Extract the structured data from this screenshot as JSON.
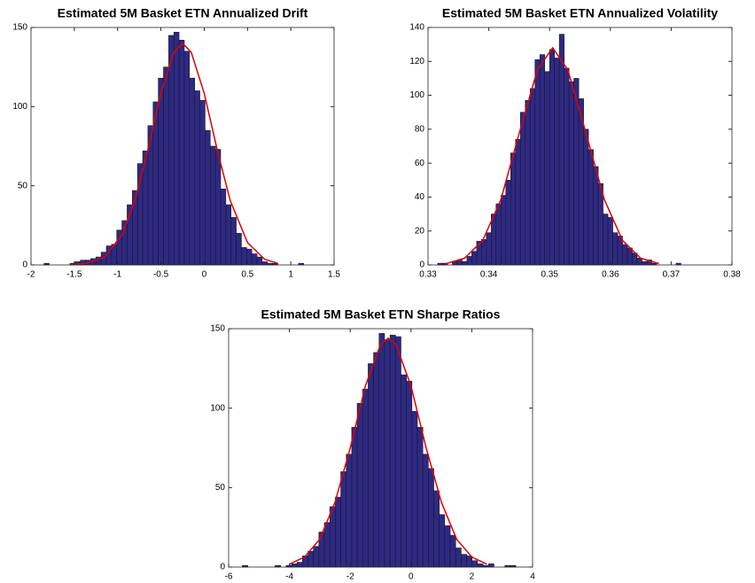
{
  "chart_data": [
    {
      "type": "histogram",
      "title": "Estimated 5M Basket ETN Annualized Drift",
      "color": "#2e2a80",
      "edgecolor": "#16143c",
      "bins": [
        -1.85,
        -1.79,
        -1.73,
        -1.67,
        -1.61,
        -1.55,
        -1.49,
        -1.43,
        -1.37,
        -1.31,
        -1.25,
        -1.19,
        -1.13,
        -1.07,
        -1.01,
        -0.95,
        -0.89,
        -0.83,
        -0.77,
        -0.71,
        -0.65,
        -0.59,
        -0.53,
        -0.47,
        -0.41,
        -0.35,
        -0.29,
        -0.23,
        -0.17,
        -0.11,
        -0.05,
        0.01,
        0.07,
        0.13,
        0.19,
        0.25,
        0.31,
        0.37,
        0.43,
        0.49,
        0.55,
        0.61,
        0.67,
        0.73,
        0.79,
        0.85,
        0.91,
        0.97,
        1.03,
        1.09,
        1.15
      ],
      "values": [
        1,
        0,
        0,
        0,
        0,
        1,
        2,
        3,
        3,
        4,
        5,
        8,
        12,
        13,
        22,
        28,
        38,
        47,
        64,
        72,
        88,
        103,
        118,
        125,
        145,
        147,
        142,
        135,
        118,
        110,
        104,
        85,
        75,
        73,
        48,
        38,
        30,
        20,
        11,
        10,
        7,
        5,
        2,
        1,
        1,
        0,
        0,
        0,
        0,
        1
      ],
      "curve": {
        "color": "#e00000",
        "x": [
          -1.55,
          -1.35,
          -1.15,
          -0.95,
          -0.8,
          -0.65,
          -0.5,
          -0.35,
          -0.25,
          -0.15,
          0,
          0.15,
          0.3,
          0.5,
          0.7,
          0.85
        ],
        "values": [
          0.1,
          1.0,
          5.1,
          18.9,
          40.8,
          72.8,
          108.5,
          134.4,
          140,
          134.4,
          108.5,
          72.8,
          40.8,
          14.1,
          3.5,
          1.0
        ]
      },
      "xlim": [
        -2,
        1.5
      ],
      "xticks": [
        -2,
        -1.5,
        -1,
        -0.5,
        0,
        0.5,
        1,
        1.5
      ],
      "ylim": [
        0,
        150
      ],
      "yticks": [
        0,
        50,
        100,
        150
      ]
    },
    {
      "type": "histogram",
      "title": "Estimated 5M Basket ETN Annualized Volatility",
      "color": "#2e2a80",
      "edgecolor": "#16143c",
      "bins": [
        0.3316,
        0.3324,
        0.3332,
        0.334,
        0.3348,
        0.3356,
        0.3364,
        0.3372,
        0.338,
        0.3388,
        0.3396,
        0.3404,
        0.3412,
        0.342,
        0.3428,
        0.3436,
        0.3444,
        0.3452,
        0.346,
        0.3468,
        0.3476,
        0.3484,
        0.3492,
        0.35,
        0.3508,
        0.3516,
        0.3524,
        0.3532,
        0.354,
        0.3548,
        0.3556,
        0.3564,
        0.3572,
        0.358,
        0.3588,
        0.3596,
        0.3604,
        0.3612,
        0.362,
        0.3628,
        0.3636,
        0.3644,
        0.3652,
        0.366,
        0.3668,
        0.3676,
        0.3684,
        0.3692,
        0.37,
        0.3708,
        0.3716
      ],
      "values": [
        1,
        1,
        0,
        2,
        3,
        2,
        5,
        8,
        14,
        15,
        19,
        30,
        36,
        41,
        50,
        66,
        74,
        90,
        97,
        104,
        121,
        124,
        114,
        127,
        122,
        136,
        116,
        108,
        110,
        98,
        80,
        68,
        58,
        48,
        30,
        28,
        19,
        17,
        12,
        10,
        7,
        4,
        2,
        3,
        1,
        0,
        0,
        0,
        0,
        1
      ],
      "curve": {
        "color": "#e00000",
        "x": [
          0.333,
          0.336,
          0.339,
          0.342,
          0.345,
          0.348,
          0.3505,
          0.353,
          0.356,
          0.359,
          0.362,
          0.365,
          0.368
        ],
        "values": [
          0.8,
          3.9,
          14.4,
          38.6,
          77.6,
          115,
          128,
          115,
          77.6,
          38.6,
          14.4,
          3.9,
          0.8
        ]
      },
      "xlim": [
        0.33,
        0.38
      ],
      "xticks": [
        0.33,
        0.34,
        0.35,
        0.36,
        0.37,
        0.38
      ],
      "ylim": [
        0,
        140
      ],
      "yticks": [
        0,
        20,
        40,
        60,
        80,
        100,
        120,
        140
      ]
    },
    {
      "type": "histogram",
      "title": "Estimated 5M Basket ETN Sharpe Ratios",
      "color": "#2e2a80",
      "edgecolor": "#16143c",
      "bins": [
        -5.55,
        -5.37,
        -5.19,
        -5.01,
        -4.83,
        -4.65,
        -4.47,
        -4.29,
        -4.11,
        -3.93,
        -3.75,
        -3.57,
        -3.39,
        -3.21,
        -3.03,
        -2.85,
        -2.67,
        -2.49,
        -2.31,
        -2.13,
        -1.95,
        -1.77,
        -1.59,
        -1.41,
        -1.23,
        -1.05,
        -0.87,
        -0.69,
        -0.51,
        -0.33,
        -0.15,
        0.03,
        0.21,
        0.39,
        0.57,
        0.75,
        0.93,
        1.11,
        1.29,
        1.47,
        1.65,
        1.83,
        2.01,
        2.19,
        2.37,
        2.55,
        2.73,
        2.91,
        3.09,
        3.27,
        3.45
      ],
      "values": [
        1,
        0,
        0,
        0,
        0,
        0,
        1,
        0,
        1,
        2,
        3,
        7,
        10,
        13,
        22,
        28,
        38,
        44,
        60,
        71,
        88,
        103,
        112,
        128,
        135,
        147,
        143,
        146,
        145,
        121,
        117,
        98,
        88,
        71,
        62,
        48,
        33,
        26,
        20,
        12,
        8,
        7,
        4,
        2,
        1,
        2,
        0,
        0,
        1,
        1
      ],
      "curve": {
        "color": "#e00000",
        "x": [
          -4,
          -3.5,
          -3,
          -2.5,
          -2,
          -1.5,
          -1,
          -0.75,
          -0.5,
          0,
          0.5,
          1,
          1.5,
          2,
          2.5
        ],
        "values": [
          1.8,
          6.3,
          17.6,
          40.8,
          74.9,
          114,
          140.3,
          144,
          140.3,
          114,
          74.9,
          40.8,
          17.6,
          6.3,
          1.8
        ]
      },
      "xlim": [
        -6,
        4
      ],
      "xticks": [
        -6,
        -4,
        -2,
        0,
        2,
        4
      ],
      "ylim": [
        0,
        150
      ],
      "yticks": [
        0,
        50,
        100,
        150
      ]
    }
  ]
}
